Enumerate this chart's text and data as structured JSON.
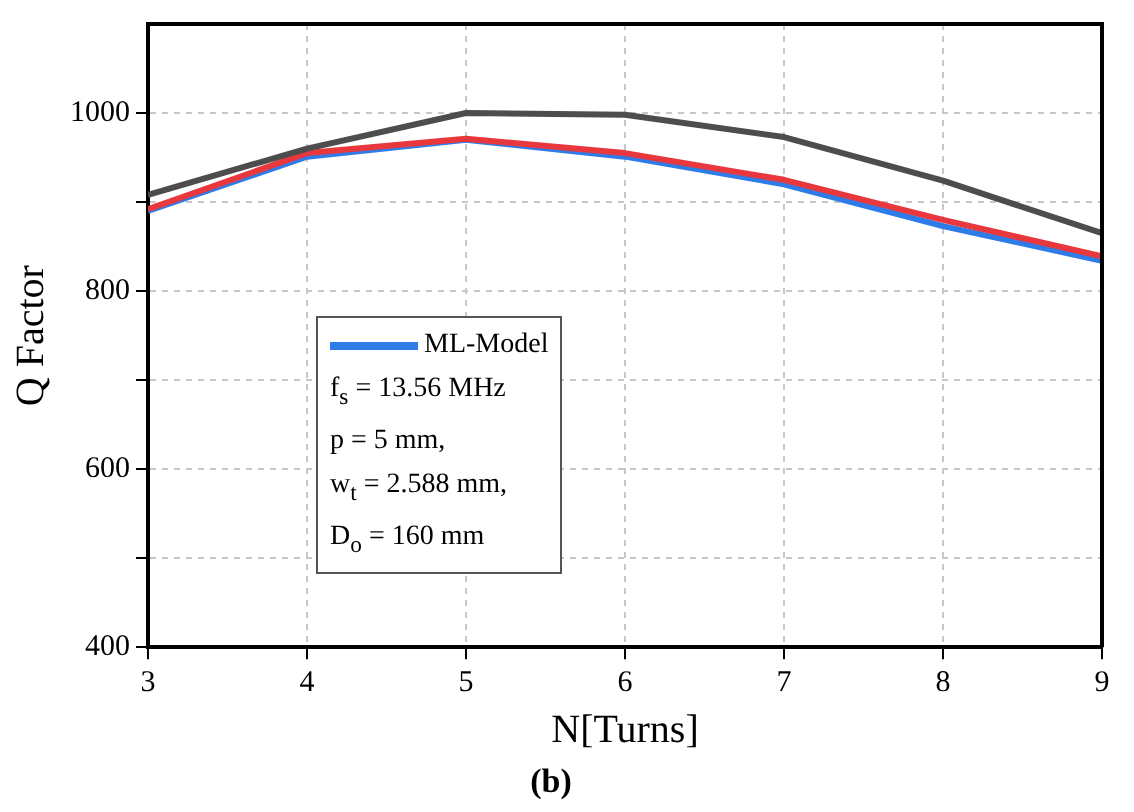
{
  "chart_data": {
    "type": "line",
    "title": "(b)",
    "xlabel": "N[Turns]",
    "ylabel": "Q Factor",
    "x": [
      3,
      4,
      5,
      6,
      7,
      8,
      9
    ],
    "series": [
      {
        "color": "#4d4d4d",
        "values": [
          908,
          960,
          1000,
          998,
          973,
          924,
          865
        ]
      },
      {
        "color": "#e8383d",
        "values": [
          892,
          955,
          971,
          955,
          925,
          880,
          839
        ]
      },
      {
        "name": "ML-Model",
        "color": "#2f7ce8",
        "values": [
          890,
          951,
          970,
          951,
          920,
          873,
          834
        ]
      }
    ],
    "xlim": [
      3,
      9
    ],
    "xticks": [
      3,
      4,
      5,
      6,
      7,
      8,
      9
    ],
    "ylim": [
      400,
      1100
    ],
    "yticks": [
      400,
      {
        "value": 500,
        "label": null
      },
      600,
      {
        "value": 700,
        "label": null
      },
      800,
      {
        "value": 900,
        "label": null
      },
      1000
    ],
    "grid": true,
    "legend": "bottom left",
    "marker": "none",
    "line_style": "solid",
    "annotations": [
      "f$_{s}$ = 13.56 MHz",
      "p = 5 mm,",
      "w$_{t}$ = 2.588 mm,",
      "D$_{o}$ = 160 mm"
    ]
  }
}
